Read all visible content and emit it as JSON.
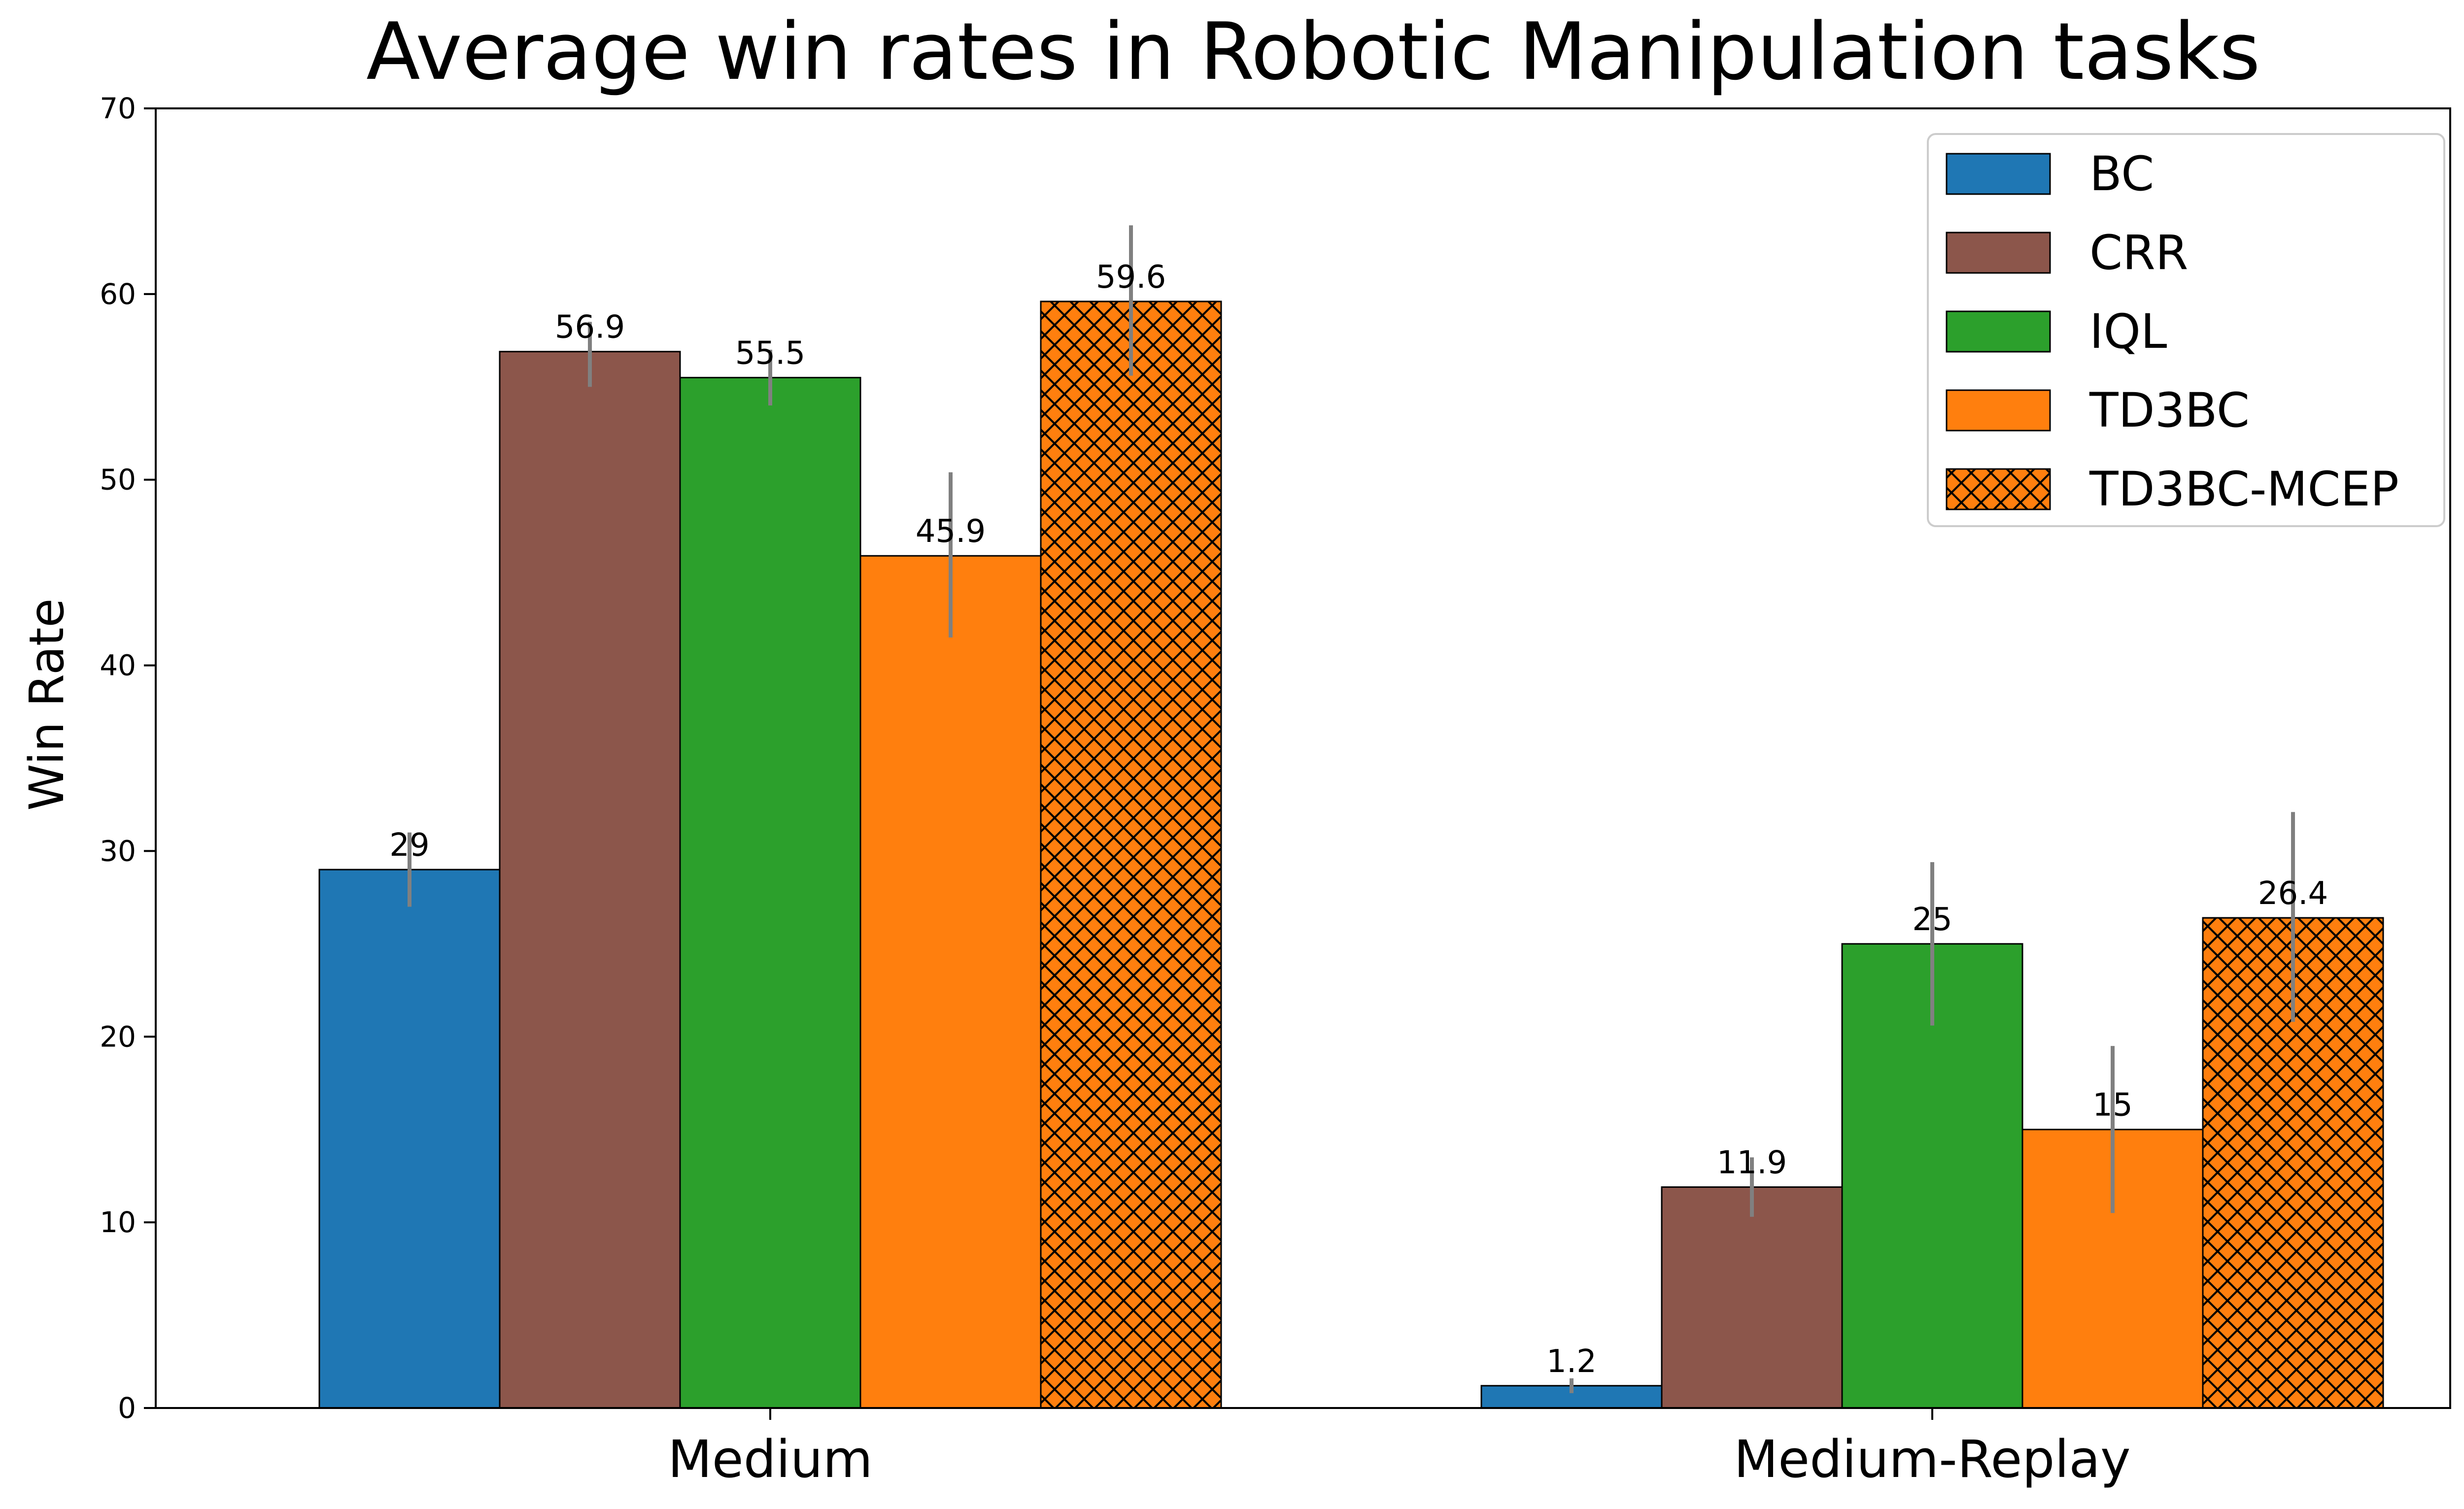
{
  "chart_data": {
    "type": "bar",
    "title": "Average win rates in Robotic Manipulation tasks",
    "xlabel": "",
    "ylabel": "Win Rate",
    "ylim": [
      0,
      70
    ],
    "yticks": [
      0,
      10,
      20,
      30,
      40,
      50,
      60,
      70
    ],
    "categories": [
      "Medium",
      "Medium-Replay"
    ],
    "grid": false,
    "legend_position": "top-right",
    "series": [
      {
        "name": "BC",
        "color": "#1f77b4",
        "hatch": false,
        "values": [
          29,
          1.2
        ],
        "labels": [
          "29",
          "1.2"
        ],
        "err_low": [
          27.0,
          0.8
        ],
        "err_high": [
          31.0,
          1.6
        ]
      },
      {
        "name": "CRR",
        "color": "#8c564b",
        "hatch": false,
        "values": [
          56.9,
          11.9
        ],
        "labels": [
          "56.9",
          "11.9"
        ],
        "err_low": [
          55.0,
          10.3
        ],
        "err_high": [
          58.5,
          13.5
        ]
      },
      {
        "name": "IQL",
        "color": "#2ca02c",
        "hatch": false,
        "values": [
          55.5,
          25
        ],
        "labels": [
          "55.5",
          "25"
        ],
        "err_low": [
          54.0,
          20.6
        ],
        "err_high": [
          57.0,
          29.4
        ]
      },
      {
        "name": "TD3BC",
        "color": "#ff7f0e",
        "hatch": false,
        "values": [
          45.9,
          15
        ],
        "labels": [
          "45.9",
          "15"
        ],
        "err_low": [
          41.5,
          10.5
        ],
        "err_high": [
          50.4,
          19.5
        ]
      },
      {
        "name": "TD3BC-MCEP",
        "color": "#ff7f0e",
        "hatch": true,
        "values": [
          59.6,
          26.4
        ],
        "labels": [
          "59.6",
          "26.4"
        ],
        "err_low": [
          55.6,
          20.8
        ],
        "err_high": [
          63.7,
          32.1
        ]
      }
    ],
    "error_bar_color": "#808080"
  }
}
